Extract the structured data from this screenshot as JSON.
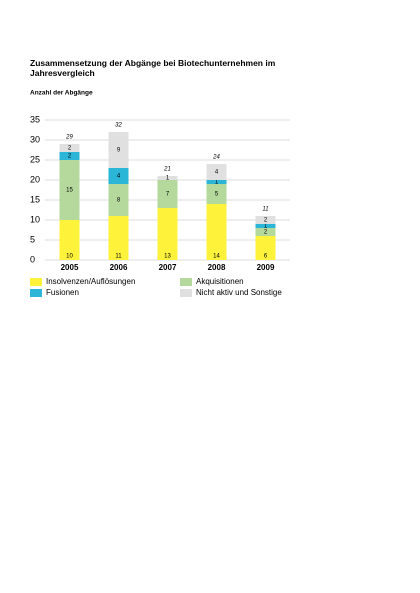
{
  "chart_data": {
    "type": "stacked-bar",
    "title": "Zusammensetzung der Abgänge bei Biotechunternehmen im Jahresvergleich",
    "subtitle": "Anzahl der Abgänge",
    "categories": [
      "2005",
      "2006",
      "2007",
      "2008",
      "2009"
    ],
    "series": [
      {
        "name": "Insolvenzen/Auflösungen",
        "color": "#fff23a",
        "values": [
          10,
          11,
          13,
          14,
          6
        ]
      },
      {
        "name": "Akquisitionen",
        "color": "#b5d99c",
        "values": [
          15,
          8,
          7,
          5,
          2
        ]
      },
      {
        "name": "Fusionen",
        "color": "#2bb5d6",
        "values": [
          2,
          4,
          null,
          1,
          1
        ]
      },
      {
        "name": "Nicht aktiv und Sonstige",
        "color": "#e0e0e0",
        "values": [
          2,
          9,
          1,
          4,
          2
        ]
      }
    ],
    "totals": [
      29,
      32,
      21,
      24,
      11
    ],
    "ylim": [
      0,
      35
    ],
    "yticks": [
      0,
      5,
      10,
      15,
      20,
      25,
      30,
      35
    ],
    "grid": true
  }
}
